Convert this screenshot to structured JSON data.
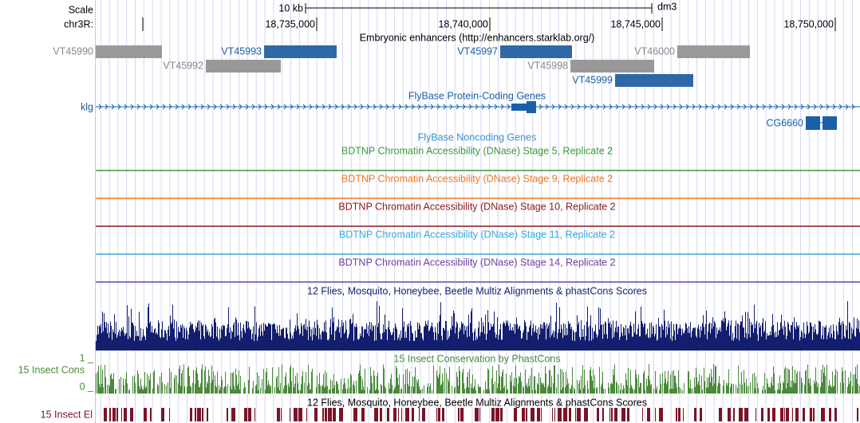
{
  "ruler": {
    "scale_label": "Scale",
    "scale_value": "10 kb",
    "assembly": "dm3",
    "chrom_label": "chr3R:",
    "positions": [
      "18,735,000",
      "18,740,000",
      "18,745,000",
      "18,750,000"
    ]
  },
  "enhancers": {
    "title": "Embryonic enhancers (http://enhancers.starklab.org/)",
    "features": [
      "VT45990",
      "VT45993",
      "VT45997",
      "VT46000",
      "VT45992",
      "VT45998",
      "VT45999"
    ]
  },
  "genes": {
    "title": "FlyBase Protein-Coding Genes",
    "names": [
      "klg",
      "CG6660"
    ]
  },
  "noncoding": {
    "title": "FlyBase Noncoding Genes"
  },
  "dnase_tracks": [
    "BDTNP Chromatin Accessibility (DNase) Stage 5, Replicate 2",
    "BDTNP Chromatin Accessibility (DNase) Stage 9, Replicate 2",
    "BDTNP Chromatin Accessibility (DNase) Stage 10, Replicate 2",
    "BDTNP Chromatin Accessibility (DNase) Stage 11, Replicate 2",
    "BDTNP Chromatin Accessibility (DNase) Stage 14, Replicate 2"
  ],
  "multiz": {
    "title": "12 Flies, Mosquito, Honeybee, Beetle Multiz Alignments & phastCons Scores"
  },
  "phastcons": {
    "title": "15 Insect Conservation by PhastCons",
    "label": "15 Insect Cons",
    "y_max": "1 _",
    "y_min": "0 _"
  },
  "elements": {
    "title": "12 Flies, Mosquito, Honeybee, Beetle Multiz Alignments & phastCons Scores",
    "label": "15 Insect El"
  }
}
